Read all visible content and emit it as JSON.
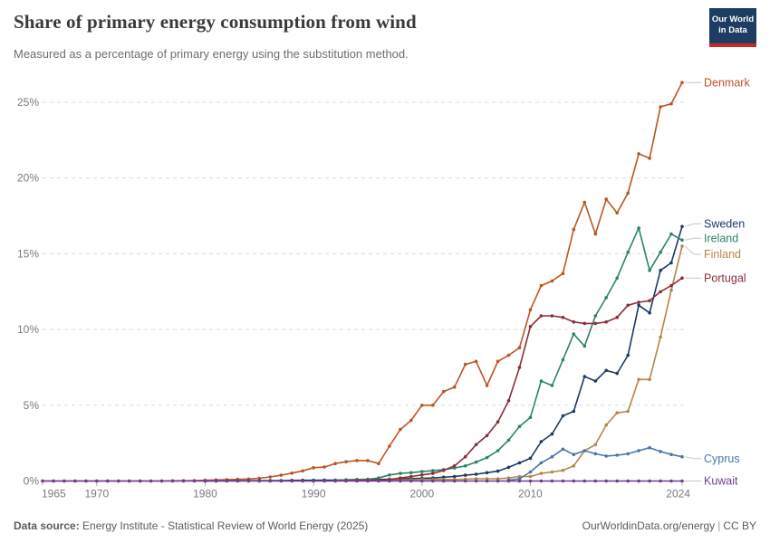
{
  "header": {
    "title": "Share of primary energy consumption from wind",
    "subtitle": "Measured as a percentage of primary energy using the substitution method.",
    "logo": {
      "line1": "Our World",
      "line2": "in Data",
      "bg": "#1D3D63",
      "stripe": "#CE261F"
    }
  },
  "footer": {
    "source_label": "Data source:",
    "source_text": " Energy Institute - Statistical Review of World Energy (2025)",
    "site": "OurWorldinData.org/energy",
    "separator": "|",
    "license": "CC BY"
  },
  "chart_data": {
    "type": "line",
    "title": "Share of primary energy consumption from wind",
    "subtitle": "Measured as a percentage of primary energy using the substitution method.",
    "xlabel": "",
    "ylabel": "",
    "x_ticks": [
      1965,
      1970,
      1980,
      1990,
      2000,
      2010,
      2024
    ],
    "y_ticks_percent": [
      0,
      5,
      10,
      15,
      20,
      25
    ],
    "xlim": [
      1965,
      2024
    ],
    "ylim": [
      0,
      26.5
    ],
    "grid": "horizontal-dashed",
    "legend_position": "right-edge-labels",
    "y_unit": "%",
    "series": [
      {
        "name": "Denmark",
        "color": "#BE5423",
        "label_dy": 0,
        "start_year": 1965,
        "values": [
          0,
          0,
          0,
          0,
          0,
          0,
          0,
          0,
          0,
          0,
          0,
          0,
          0.01,
          0.02,
          0.03,
          0.05,
          0.07,
          0.09,
          0.11,
          0.13,
          0.18,
          0.27,
          0.38,
          0.52,
          0.67,
          0.88,
          0.92,
          1.15,
          1.27,
          1.35,
          1.35,
          1.15,
          2.3,
          3.4,
          4.0,
          5.0,
          5.0,
          5.9,
          6.2,
          7.7,
          7.9,
          6.3,
          7.9,
          8.3,
          8.8,
          11.3,
          12.9,
          13.2,
          13.7,
          16.6,
          18.4,
          16.3,
          18.6,
          17.7,
          19.0,
          21.6,
          21.3,
          24.7,
          24.9,
          26.3
        ]
      },
      {
        "name": "Sweden",
        "color": "#1B3A66",
        "label_dy": -3,
        "start_year": 1980,
        "values": [
          0,
          0,
          0.01,
          0.01,
          0.02,
          0.02,
          0.03,
          0.03,
          0.04,
          0.05,
          0.05,
          0.06,
          0.06,
          0.07,
          0.08,
          0.09,
          0.1,
          0.12,
          0.14,
          0.16,
          0.18,
          0.2,
          0.25,
          0.3,
          0.38,
          0.45,
          0.55,
          0.65,
          0.9,
          1.2,
          1.5,
          2.6,
          3.1,
          4.3,
          4.6,
          6.9,
          6.6,
          7.3,
          7.1,
          8.3,
          11.6,
          11.1,
          13.9,
          14.4,
          16.8
        ]
      },
      {
        "name": "Ireland",
        "color": "#2C8465",
        "label_dy": -2,
        "start_year": 1992,
        "values": [
          0.05,
          0.08,
          0.1,
          0.12,
          0.2,
          0.4,
          0.5,
          0.55,
          0.62,
          0.68,
          0.75,
          0.86,
          1.0,
          1.25,
          1.55,
          2.0,
          2.7,
          3.6,
          4.2,
          6.6,
          6.3,
          8.0,
          9.7,
          8.9,
          10.9,
          12.1,
          13.4,
          15.1,
          16.7,
          13.9,
          15.1,
          16.3,
          15.9
        ]
      },
      {
        "name": "Finland",
        "color": "#B3874A",
        "label_dy": 9,
        "start_year": 1992,
        "values": [
          0.02,
          0.03,
          0.04,
          0.05,
          0.05,
          0.06,
          0.07,
          0.08,
          0.1,
          0.1,
          0.1,
          0.1,
          0.12,
          0.15,
          0.15,
          0.15,
          0.2,
          0.3,
          0.3,
          0.5,
          0.6,
          0.7,
          1.0,
          2.0,
          2.4,
          3.7,
          4.5,
          4.6,
          6.7,
          6.7,
          9.5,
          12.6,
          15.5
        ]
      },
      {
        "name": "Portugal",
        "color": "#883039",
        "label_dy": 0,
        "start_year": 1992,
        "values": [
          0.02,
          0.03,
          0.04,
          0.05,
          0.06,
          0.1,
          0.2,
          0.3,
          0.4,
          0.5,
          0.7,
          1.0,
          1.6,
          2.4,
          3.0,
          3.9,
          5.3,
          7.5,
          10.2,
          10.9,
          10.9,
          10.8,
          10.5,
          10.4,
          10.4,
          10.5,
          10.8,
          11.6,
          11.8,
          11.9,
          12.5,
          12.9,
          13.4
        ]
      },
      {
        "name": "Cyprus",
        "color": "#4C74A9",
        "label_dy": 2,
        "start_year": 2008,
        "values": [
          0.05,
          0.15,
          0.6,
          1.2,
          1.6,
          2.1,
          1.75,
          2.0,
          1.8,
          1.65,
          1.7,
          1.8,
          2.0,
          2.2,
          1.95,
          1.75,
          1.6
        ]
      },
      {
        "name": "Kuwait",
        "color": "#6D3E91",
        "label_dy": 0,
        "start_year": 1965,
        "values": [
          0,
          0,
          0,
          0,
          0,
          0,
          0,
          0,
          0,
          0,
          0,
          0,
          0,
          0,
          0,
          0,
          0,
          0,
          0,
          0,
          0,
          0,
          0,
          0,
          0,
          0,
          0,
          0,
          0,
          0,
          0,
          0,
          0,
          0,
          0,
          0,
          0,
          0,
          0,
          0,
          0,
          0,
          0,
          0,
          0,
          0,
          0,
          0,
          0,
          0,
          0,
          0,
          0,
          0,
          0,
          0,
          0,
          0,
          0,
          0
        ]
      }
    ]
  }
}
